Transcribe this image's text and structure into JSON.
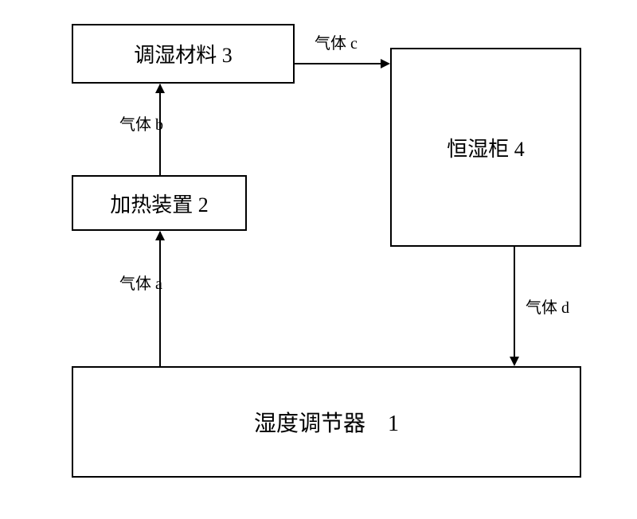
{
  "diagram": {
    "type": "flowchart",
    "background_color": "#ffffff",
    "border_color": "#000000",
    "text_color": "#000000",
    "font_family": "SimSun, serif",
    "nodes": {
      "box1": {
        "label": "湿度调节器　1",
        "fontsize": 28
      },
      "box2": {
        "label": "加热装置 2",
        "fontsize": 26
      },
      "box3": {
        "label": "调湿材料 3",
        "fontsize": 26
      },
      "box4": {
        "label": "恒湿柜 4",
        "fontsize": 26
      }
    },
    "edges": {
      "a": {
        "from": "box1",
        "to": "box2",
        "label": "气体 a",
        "fontsize": 20
      },
      "b": {
        "from": "box2",
        "to": "box3",
        "label": "气体 b",
        "fontsize": 20
      },
      "c": {
        "from": "box3",
        "to": "box4",
        "label": "气体 c",
        "fontsize": 20
      },
      "d": {
        "from": "box4",
        "to": "box1",
        "label": "气体 d",
        "fontsize": 20
      }
    }
  }
}
